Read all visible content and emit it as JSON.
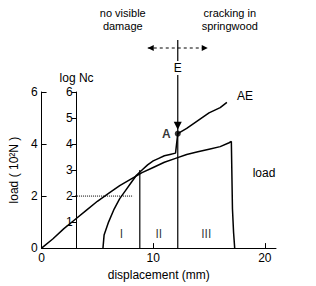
{
  "chart_data": {
    "type": "line",
    "x_label": "displacement (mm)",
    "y_label": "load ( 10²N )",
    "y2_label": "log Nc",
    "xlim": [
      0,
      21
    ],
    "xticks": [
      0,
      10,
      20
    ],
    "ylim": [
      0,
      6
    ],
    "yticks": [
      0,
      2,
      4,
      6
    ],
    "y2lim": [
      0,
      6
    ],
    "y2ticks": [
      1,
      2,
      3,
      4,
      5,
      6
    ],
    "grid": false,
    "series": [
      {
        "name": "load",
        "color": "#000000",
        "x": [
          0,
          1,
          2,
          3,
          4,
          5,
          6,
          7,
          8,
          9,
          10,
          11,
          12,
          13,
          14,
          15,
          16,
          16.8,
          17,
          17.1,
          17.2,
          17.3
        ],
        "values": [
          0,
          0.35,
          0.75,
          1.1,
          1.45,
          1.8,
          2.1,
          2.4,
          2.65,
          2.9,
          3.1,
          3.3,
          3.45,
          3.6,
          3.7,
          3.8,
          3.9,
          4.05,
          4.1,
          1.5,
          0.6,
          0
        ]
      },
      {
        "name": "AE",
        "axis": "y2",
        "color": "#000000",
        "x": [
          5.5,
          5.6,
          6,
          6.5,
          7,
          7.5,
          8,
          8.5,
          9,
          9.5,
          10,
          10.5,
          11,
          11.5,
          12,
          12.2,
          13,
          14,
          15,
          16,
          16.6
        ],
        "values": [
          0,
          0.5,
          1.0,
          1.5,
          1.9,
          2.2,
          2.5,
          2.8,
          3.0,
          3.2,
          3.35,
          3.45,
          3.55,
          3.6,
          3.65,
          4.4,
          4.6,
          4.9,
          5.2,
          5.4,
          5.6
        ]
      }
    ],
    "point": {
      "label": "A",
      "x": 12.2,
      "value": 4.4,
      "axis": "y2"
    },
    "guide": {
      "x": [
        3,
        8.2
      ],
      "values": [
        2,
        2
      ],
      "axis": "y2",
      "line_style": "dotted"
    },
    "boundaries": [
      {
        "x": 8.8,
        "top": 3.0
      },
      {
        "x": 12.2,
        "top": 6
      }
    ],
    "regions": [
      "I",
      "II",
      "III"
    ],
    "annotations": {
      "left": "no visible\ndamage",
      "right": "cracking in\nspringwood",
      "arrow": "E"
    }
  }
}
